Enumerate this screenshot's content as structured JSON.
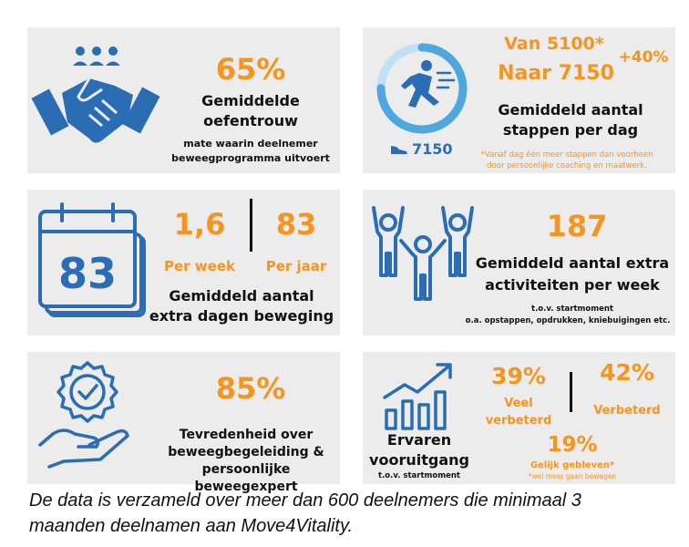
{
  "colors": {
    "blue": "#2a6db5",
    "orange": "#f7941d",
    "panel": "#ececec",
    "ring_light": "#bfe0f5",
    "ring": "#4ea8de"
  },
  "p1": {
    "icon": "handshake-icon",
    "value": "65%",
    "title_line1": "Gemiddelde",
    "title_line2": "oefentrouw",
    "sub_line1": "mate waarin deelnemer",
    "sub_line2": "beweegprogramma uitvoert"
  },
  "p2": {
    "icon": "runner-ring-icon",
    "from": "Van 5100*",
    "to": "Naar 7150",
    "change": "+40%",
    "title_line1": "Gemiddeld aantal",
    "title_line2": "stappen per dag",
    "shoe_icon": "shoe-icon",
    "steps": "7150",
    "progress": 0.75,
    "note_line1": "*Vanaf dag één meer stappen dan voorheen",
    "note_line2": "door persoonlijke coaching en maatwerk."
  },
  "p3": {
    "icon": "calendar-icon",
    "calendar_number": "83",
    "week_value": "1,6",
    "week_label": "Per week",
    "year_value": "83",
    "year_label": "Per jaar",
    "title_line1": "Gemiddeld aantal",
    "title_line2": "extra dagen beweging"
  },
  "p4": {
    "icon": "people-cheering-icon",
    "value": "187",
    "title_line1": "Gemiddeld aantal extra",
    "title_line2": "activiteiten per week",
    "sub_line1": "t.o.v. startmoment",
    "sub_line2": "o.a. opstappen, opdrukken, kniebuigingen etc."
  },
  "p5": {
    "icon": "hand-badge-check-icon",
    "value": "85%",
    "title_line1": "Tevredenheid over",
    "title_line2": "beweegbegeleiding &",
    "title_line3": "persoonlijke beweegexpert"
  },
  "p6": {
    "icon": "growth-chart-icon",
    "label_line1": "Ervaren",
    "label_line2": "vooruitgang",
    "label_sub": "t.o.v. startmoment",
    "a_value": "39%",
    "a_line1": "Veel",
    "a_line2": "verbeterd",
    "b_value": "42%",
    "b_label": "Verbeterd",
    "c_value": "19%",
    "c_label": "Gelijk gebleven*",
    "c_note": "*wel meer gaan bewegen"
  },
  "footer": {
    "line1": "De data is verzameld over meer dan 600 deelnemers die minimaal 3",
    "line2": "maanden deelnamen aan Move4Vitality."
  }
}
